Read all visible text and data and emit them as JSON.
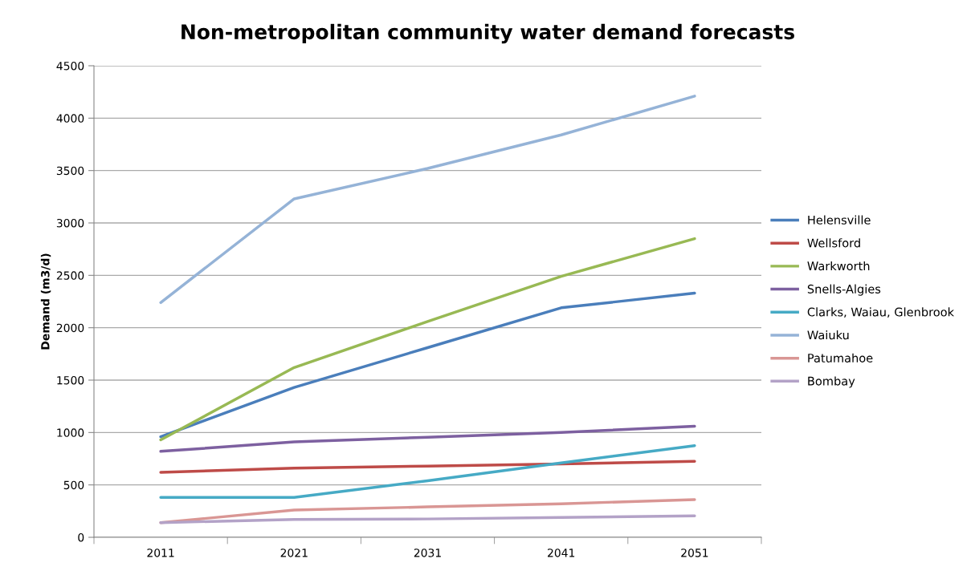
{
  "chart_data": {
    "type": "line",
    "title": "Non-metropolitan community water demand forecasts",
    "ylabel": "Demand (m3/d)",
    "categories": [
      "2011",
      "2021",
      "2031",
      "2041",
      "2051"
    ],
    "ylim": [
      0,
      4500
    ],
    "yticks": [
      0,
      500,
      1000,
      1500,
      2000,
      2500,
      3000,
      3500,
      4000,
      4500
    ],
    "grid": "y",
    "legend": "right",
    "marker": "none",
    "line_style": "solid",
    "series": [
      {
        "name": "Helensville",
        "color": "#4a7ebb",
        "values": [
          960,
          1430,
          1810,
          2190,
          2330
        ]
      },
      {
        "name": "Wellsford",
        "color": "#be4b48",
        "values": [
          620,
          660,
          680,
          700,
          725
        ]
      },
      {
        "name": "Warkworth",
        "color": "#98b954",
        "values": [
          930,
          1620,
          2060,
          2490,
          2850
        ]
      },
      {
        "name": "Snells-Algies",
        "color": "#7d60a0",
        "values": [
          820,
          910,
          955,
          1000,
          1060
        ]
      },
      {
        "name": "Clarks, Waiau, Glenbrook",
        "color": "#46aac5",
        "values": [
          380,
          380,
          540,
          710,
          875
        ]
      },
      {
        "name": "Waiuku",
        "color": "#95b3d7",
        "values": [
          2240,
          3230,
          3520,
          3840,
          4210
        ]
      },
      {
        "name": "Patumahoe",
        "color": "#d99694",
        "values": [
          140,
          260,
          290,
          320,
          360
        ]
      },
      {
        "name": "Bombay",
        "color": "#b3a2c7",
        "values": [
          140,
          170,
          175,
          190,
          205
        ]
      }
    ]
  }
}
